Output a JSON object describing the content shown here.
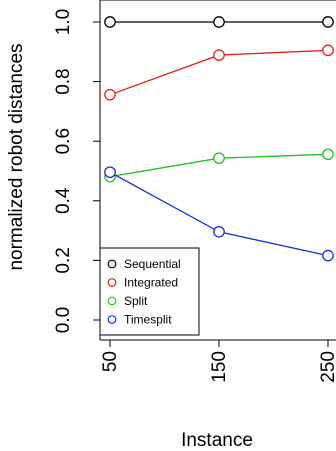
{
  "chart_data": {
    "type": "line",
    "xlabel": "Instance",
    "ylabel": "normalized robot distances",
    "x": [
      50,
      150,
      250
    ],
    "x_tick_labels": [
      "50",
      "150",
      "250"
    ],
    "y_ticks": [
      0.0,
      0.2,
      0.4,
      0.6,
      0.8,
      1.0
    ],
    "y_tick_labels": [
      "0.0",
      "0.2",
      "0.4",
      "0.6",
      "0.8",
      "1.0"
    ],
    "ylim": [
      0.0,
      1.0
    ],
    "grid": false,
    "legend_position": "bottom-left",
    "series": [
      {
        "name": "Sequential",
        "color": "#000000",
        "values": [
          1.0,
          1.0,
          1.0
        ]
      },
      {
        "name": "Integrated",
        "color": "#e8211c",
        "values": [
          0.756,
          0.889,
          0.905
        ]
      },
      {
        "name": "Split",
        "color": "#1fc41f",
        "values": [
          0.481,
          0.543,
          0.556
        ]
      },
      {
        "name": "Timesplit",
        "color": "#1c2ee0",
        "values": [
          0.496,
          0.296,
          0.216
        ]
      }
    ]
  }
}
